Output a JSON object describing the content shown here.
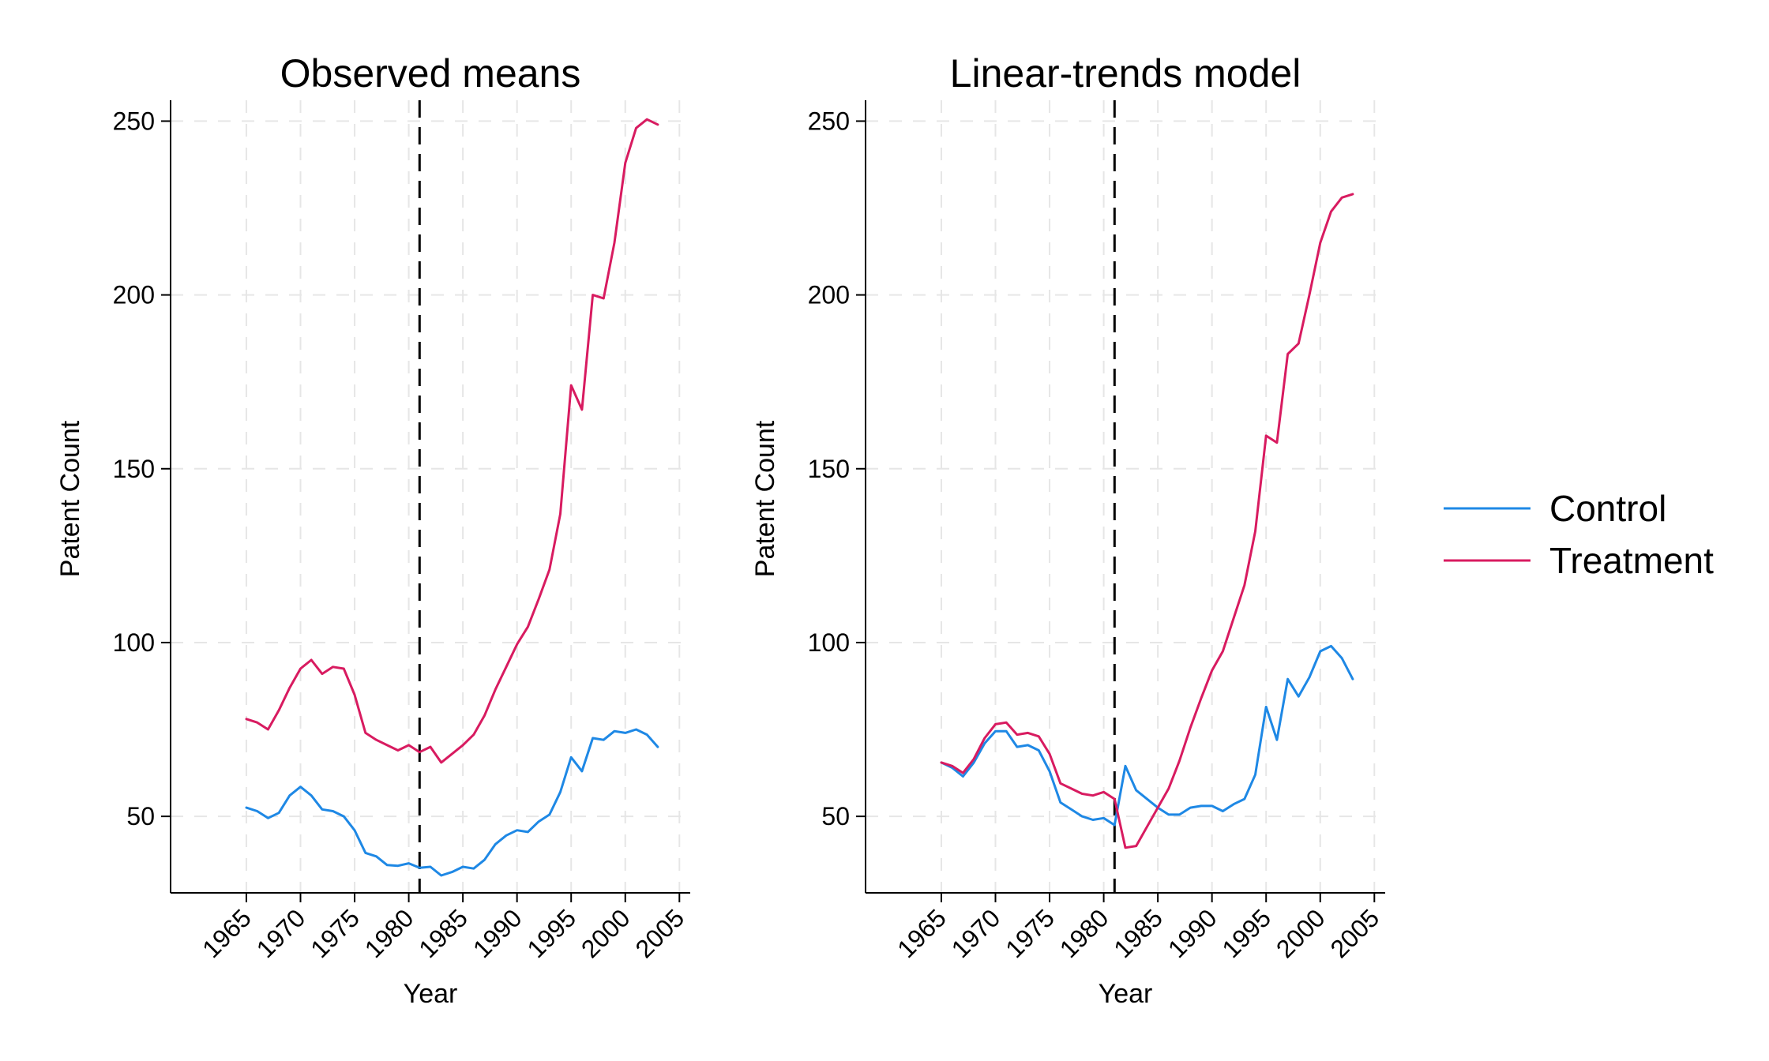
{
  "legend": [
    {
      "name": "Control",
      "color": "#1e88e5"
    },
    {
      "name": "Treatment",
      "color": "#d81b60"
    }
  ],
  "chart_data": [
    {
      "type": "line",
      "title": "Observed means",
      "xlabel": "Year",
      "ylabel": "Patent Count",
      "xlim": [
        1958,
        2006
      ],
      "ylim": [
        28,
        256
      ],
      "xticks": [
        1965,
        1970,
        1975,
        1980,
        1985,
        1990,
        1995,
        2000,
        2005
      ],
      "yticks": [
        50,
        100,
        150,
        200,
        250
      ],
      "vline": 1981,
      "grid": true,
      "x": [
        1965,
        1966,
        1967,
        1968,
        1969,
        1970,
        1971,
        1972,
        1973,
        1974,
        1975,
        1976,
        1977,
        1978,
        1979,
        1980,
        1981,
        1982,
        1983,
        1984,
        1985,
        1986,
        1987,
        1988,
        1989,
        1990,
        1991,
        1992,
        1993,
        1994,
        1995,
        1996,
        1997,
        1998,
        1999,
        2000,
        2001,
        2002,
        2003
      ],
      "series": [
        {
          "name": "Control",
          "color": "#1e88e5",
          "values": [
            52.5,
            51.5,
            49.5,
            51,
            56,
            58.5,
            56,
            52,
            51.5,
            50,
            46,
            39.5,
            38.5,
            36,
            35.8,
            36.5,
            35.2,
            35.5,
            33,
            34,
            35.5,
            35,
            37.5,
            42,
            44.5,
            46,
            45.5,
            48.5,
            50.5,
            57,
            67,
            63,
            72.5,
            72,
            74.5,
            74,
            75,
            73.5,
            70
          ]
        },
        {
          "name": "Treatment",
          "color": "#d81b60",
          "values": [
            78,
            77,
            75,
            80.5,
            87,
            92.5,
            95,
            91,
            93,
            92.5,
            85,
            74,
            72,
            70.5,
            69,
            70.5,
            68.5,
            70,
            65.5,
            68,
            70.5,
            73.5,
            79,
            86.5,
            93,
            99.5,
            104.5,
            112.5,
            121,
            137,
            174,
            167,
            200,
            199,
            215,
            238,
            248,
            250.5,
            249
          ]
        }
      ]
    },
    {
      "type": "line",
      "title": "Linear-trends model",
      "xlabel": "Year",
      "ylabel": "Patent Count",
      "xlim": [
        1958,
        2006
      ],
      "ylim": [
        28,
        256
      ],
      "xticks": [
        1965,
        1970,
        1975,
        1980,
        1985,
        1990,
        1995,
        2000,
        2005
      ],
      "yticks": [
        50,
        100,
        150,
        200,
        250
      ],
      "vline": 1981,
      "grid": true,
      "x": [
        1965,
        1966,
        1967,
        1968,
        1969,
        1970,
        1971,
        1972,
        1973,
        1974,
        1975,
        1976,
        1977,
        1978,
        1979,
        1980,
        1981,
        1982,
        1983,
        1984,
        1985,
        1986,
        1987,
        1988,
        1989,
        1990,
        1991,
        1992,
        1993,
        1994,
        1995,
        1996,
        1997,
        1998,
        1999,
        2000,
        2001,
        2002,
        2003
      ],
      "series": [
        {
          "name": "Control",
          "color": "#1e88e5",
          "values": [
            65.5,
            64,
            61.5,
            65.5,
            71,
            74.5,
            74.5,
            70,
            70.5,
            69,
            63,
            54,
            52,
            50,
            49,
            49.5,
            47.5,
            64.5,
            57.5,
            55,
            52.5,
            50.5,
            50.5,
            52.5,
            53,
            53,
            51.5,
            53.5,
            55,
            62,
            81.5,
            72,
            89.5,
            84.5,
            90,
            97.5,
            99,
            95.5,
            89.5
          ]
        },
        {
          "name": "Treatment",
          "color": "#d81b60",
          "values": [
            65.5,
            64.5,
            62.5,
            66.5,
            72.5,
            76.5,
            77,
            73.5,
            74,
            73,
            68,
            59.5,
            58,
            56.5,
            56,
            57,
            55,
            41,
            41.5,
            47,
            52.5,
            58,
            66,
            75.5,
            84,
            92,
            97.5,
            107,
            116.5,
            132,
            159.5,
            157.5,
            183,
            186,
            200,
            215,
            224,
            228,
            229
          ]
        }
      ]
    }
  ]
}
